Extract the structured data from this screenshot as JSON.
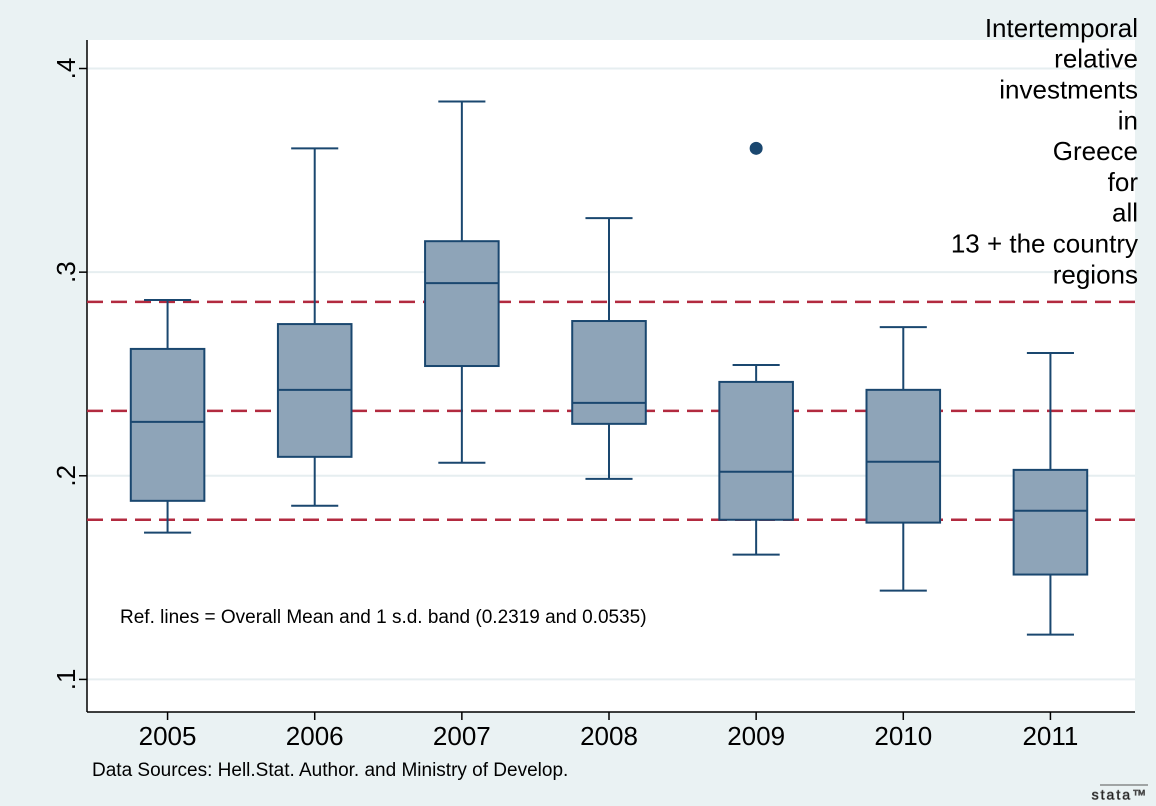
{
  "chart_data": {
    "type": "box",
    "title": [
      "Intertemporal",
      "relative",
      "investments",
      "in",
      "Greece",
      "for",
      "all",
      "13 + the country",
      "regions"
    ],
    "categories": [
      "2005",
      "2006",
      "2007",
      "2008",
      "2009",
      "2010",
      "2011"
    ],
    "whisker_high": [
      0.2863,
      0.3608,
      0.3838,
      0.3265,
      0.2544,
      0.273,
      0.2603
    ],
    "q3": [
      0.2623,
      0.2745,
      0.3152,
      0.276,
      0.2461,
      0.2422,
      0.2029
    ],
    "median": [
      0.2265,
      0.2422,
      0.2946,
      0.2358,
      0.202,
      0.2069,
      0.1828
    ],
    "q1": [
      0.1877,
      0.2093,
      0.2539,
      0.2255,
      0.1784,
      0.177,
      0.1515
    ],
    "whisker_low": [
      0.1721,
      0.1853,
      0.2064,
      0.1985,
      0.1613,
      0.1436,
      0.122
    ],
    "outliers": [
      [],
      [],
      [],
      [],
      [
        0.3608
      ],
      [],
      []
    ],
    "ref_lines": [
      0.1784,
      0.2319,
      0.2854
    ],
    "annotation": "Ref. lines = Overall Mean and 1 s.d. band (0.2319 and 0.0535)",
    "note": "Data Sources: Hell.Stat. Author. and Ministry of Develop.",
    "logo": "stata™",
    "color": "#8ea4b8",
    "edge_color": "#1a476f",
    "ref_color": "#b22a3f",
    "ylim": [
      0.084,
      0.414
    ],
    "yticks": [
      {
        "value": 0.1,
        "label": ".1"
      },
      {
        "value": 0.2,
        "label": ".2"
      },
      {
        "value": 0.3,
        "label": ".3"
      },
      {
        "value": 0.4,
        "label": ".4"
      }
    ],
    "grid": true
  }
}
